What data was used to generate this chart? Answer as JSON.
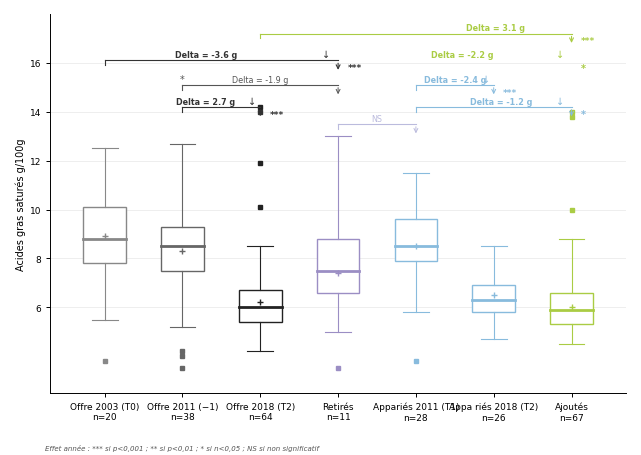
{
  "groups": [
    {
      "label": "Offre 2003 (T0)\nn=20",
      "color": "#888888",
      "median": 8.8,
      "q1": 7.8,
      "q3": 10.1,
      "whisker_low": 5.5,
      "whisker_high": 12.5,
      "mean": 8.9,
      "fliers_low": [
        3.8
      ],
      "fliers_high": []
    },
    {
      "label": "Offre 2011 (−1)\nn=38",
      "color": "#666666",
      "median": 8.5,
      "q1": 7.5,
      "q3": 9.3,
      "whisker_low": 5.2,
      "whisker_high": 12.7,
      "mean": 8.3,
      "fliers_low": [
        3.5,
        4.0,
        4.2
      ],
      "fliers_high": []
    },
    {
      "label": "Offre 2018 (T2)\nn=64",
      "color": "#222222",
      "median": 6.0,
      "q1": 5.4,
      "q3": 6.7,
      "whisker_low": 4.2,
      "whisker_high": 8.5,
      "mean": 6.2,
      "fliers_low": [],
      "fliers_high": [
        10.1,
        11.9,
        14.2
      ]
    },
    {
      "label": "Retirés\nn=11",
      "color": "#9B8EC4",
      "median": 7.5,
      "q1": 6.6,
      "q3": 8.8,
      "whisker_low": 5.0,
      "whisker_high": 13.0,
      "mean": 7.4,
      "fliers_low": [
        3.5
      ],
      "fliers_high": []
    },
    {
      "label": "Appariés 2011 (T1)\nn=28",
      "color": "#88BBDD",
      "median": 8.5,
      "q1": 7.9,
      "q3": 9.6,
      "whisker_low": 5.8,
      "whisker_high": 11.5,
      "mean": 8.5,
      "fliers_low": [
        3.8
      ],
      "fliers_high": []
    },
    {
      "label": "Appa riés 2018 (T2)\nn=26",
      "color": "#88BBDD",
      "median": 6.3,
      "q1": 5.8,
      "q3": 6.9,
      "whisker_low": 4.7,
      "whisker_high": 8.5,
      "mean": 6.5,
      "fliers_low": [],
      "fliers_high": []
    },
    {
      "label": "Ajoutés\nn=67",
      "color": "#AACC44",
      "median": 5.9,
      "q1": 5.3,
      "q3": 6.6,
      "whisker_low": 4.5,
      "whisker_high": 8.8,
      "mean": 6.0,
      "fliers_low": [],
      "fliers_high": [
        10.0,
        13.8
      ]
    }
  ],
  "ylim": [
    2.5,
    18.0
  ],
  "yticks": [
    6,
    8,
    10,
    12,
    14,
    16
  ],
  "ylabel": "Acides gras saturés g/100g",
  "footnote": "Effet année : *** si p<0,001 ; ** si p<0,01 ; * si n<0,05 ; NS si non significatif",
  "background_color": "#ffffff",
  "box_width": 0.55
}
